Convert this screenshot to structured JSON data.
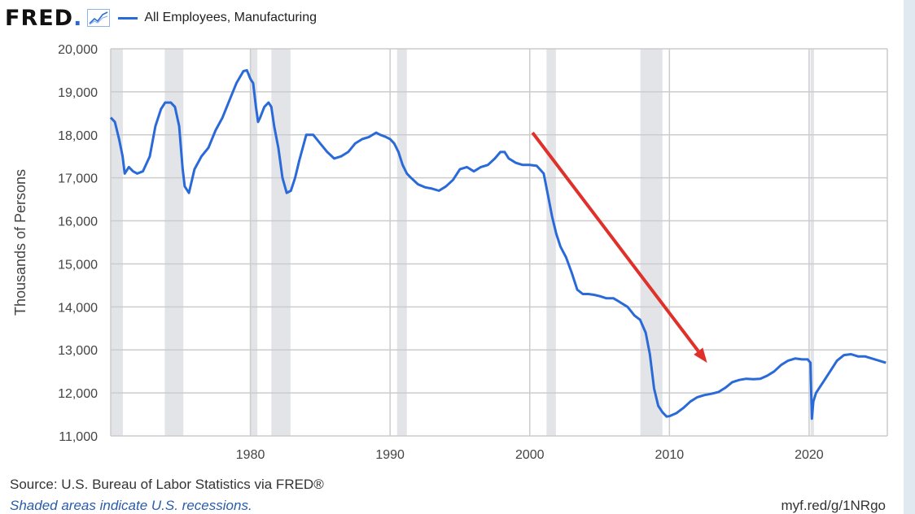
{
  "header": {
    "logo_text": "FRED",
    "logo_dot": ".",
    "icon": "graph-icon"
  },
  "footer": {
    "source": "Source: U.S. Bureau of Labor Statistics via FRED®",
    "recession_note": "Shaded areas indicate U.S. recessions.",
    "short_url": "myf.red/g/1NRgo"
  },
  "colors": {
    "series": "#2a6ad8",
    "arrow": "#e0302a",
    "recession": "#e2e4e8",
    "grid": "#cccccc",
    "side_panel": "#e1e9f0"
  },
  "chart_data": {
    "type": "line",
    "title": "",
    "xlabel": "",
    "ylabel": "Thousands of Persons",
    "xlim": [
      1970,
      2025.6
    ],
    "ylim": [
      11000,
      20000
    ],
    "x_ticks": [
      1980,
      1990,
      2000,
      2010,
      2020
    ],
    "y_ticks": [
      11000,
      12000,
      13000,
      14000,
      15000,
      16000,
      17000,
      18000,
      19000,
      20000
    ],
    "y_tick_labels": [
      "11,000",
      "12,000",
      "13,000",
      "14,000",
      "15,000",
      "16,000",
      "17,000",
      "18,000",
      "19,000",
      "20,000"
    ],
    "grid": true,
    "legend": "top-left",
    "recessions": [
      [
        1969.92,
        1970.87
      ],
      [
        1973.87,
        1975.2
      ],
      [
        1980.0,
        1980.5
      ],
      [
        1981.5,
        1982.87
      ],
      [
        1990.5,
        1991.2
      ],
      [
        2001.2,
        2001.87
      ],
      [
        2007.92,
        2009.5
      ],
      [
        2020.1,
        2020.35
      ]
    ],
    "annotations": [
      {
        "type": "arrow",
        "from": [
          2000.2,
          18050
        ],
        "to": [
          2012.7,
          12700
        ]
      }
    ],
    "series": [
      {
        "name": "All Employees, Manufacturing",
        "x": [
          1970.0,
          1970.3,
          1970.6,
          1970.85,
          1971.0,
          1971.3,
          1971.6,
          1971.9,
          1972.3,
          1972.8,
          1973.2,
          1973.6,
          1973.9,
          1974.3,
          1974.6,
          1974.9,
          1975.15,
          1975.3,
          1975.6,
          1976.0,
          1976.5,
          1977.0,
          1977.5,
          1978.0,
          1978.5,
          1979.0,
          1979.5,
          1979.75,
          1980.0,
          1980.2,
          1980.4,
          1980.55,
          1980.7,
          1981.0,
          1981.3,
          1981.5,
          1981.7,
          1982.0,
          1982.3,
          1982.6,
          1982.9,
          1983.2,
          1983.5,
          1984.0,
          1984.5,
          1985.0,
          1985.5,
          1986.0,
          1986.5,
          1987.0,
          1987.5,
          1988.0,
          1988.5,
          1989.0,
          1989.3,
          1989.7,
          1990.0,
          1990.3,
          1990.6,
          1990.9,
          1991.2,
          1991.5,
          1992.0,
          1992.5,
          1993.0,
          1993.5,
          1994.0,
          1994.5,
          1995.0,
          1995.5,
          1996.0,
          1996.5,
          1997.0,
          1997.5,
          1997.9,
          1998.2,
          1998.5,
          1999.0,
          1999.5,
          2000.0,
          2000.5,
          2001.0,
          2001.3,
          2001.6,
          2001.9,
          2002.2,
          2002.6,
          2003.0,
          2003.4,
          2003.8,
          2004.2,
          2004.6,
          2005.0,
          2005.5,
          2006.0,
          2006.5,
          2007.0,
          2007.5,
          2007.9,
          2008.3,
          2008.6,
          2008.9,
          2009.2,
          2009.5,
          2009.8,
          2010.0,
          2010.5,
          2011.0,
          2011.5,
          2012.0,
          2012.5,
          2013.0,
          2013.5,
          2014.0,
          2014.5,
          2015.0,
          2015.5,
          2016.0,
          2016.5,
          2017.0,
          2017.5,
          2018.0,
          2018.5,
          2019.0,
          2019.5,
          2019.9,
          2020.1,
          2020.2,
          2020.3,
          2020.5,
          2020.8,
          2021.0,
          2021.5,
          2022.0,
          2022.5,
          2023.0,
          2023.5,
          2024.0,
          2024.5,
          2025.0,
          2025.5
        ],
        "values": [
          18400,
          18300,
          17900,
          17500,
          17100,
          17250,
          17150,
          17100,
          17150,
          17500,
          18200,
          18600,
          18750,
          18750,
          18650,
          18200,
          17200,
          16800,
          16650,
          17200,
          17500,
          17700,
          18100,
          18400,
          18800,
          19200,
          19480,
          19500,
          19300,
          19200,
          18650,
          18300,
          18400,
          18650,
          18750,
          18650,
          18200,
          17700,
          17000,
          16650,
          16700,
          17000,
          17400,
          18000,
          18000,
          17800,
          17600,
          17450,
          17500,
          17600,
          17800,
          17900,
          17950,
          18050,
          18000,
          17950,
          17900,
          17800,
          17600,
          17300,
          17100,
          17000,
          16850,
          16780,
          16750,
          16700,
          16800,
          16950,
          17200,
          17250,
          17150,
          17250,
          17300,
          17450,
          17600,
          17600,
          17450,
          17350,
          17300,
          17300,
          17280,
          17100,
          16600,
          16100,
          15700,
          15400,
          15150,
          14800,
          14400,
          14300,
          14300,
          14280,
          14250,
          14200,
          14200,
          14100,
          14000,
          13800,
          13700,
          13400,
          12900,
          12100,
          11700,
          11550,
          11450,
          11460,
          11530,
          11650,
          11800,
          11900,
          11950,
          11980,
          12020,
          12120,
          12250,
          12300,
          12330,
          12320,
          12330,
          12400,
          12500,
          12650,
          12750,
          12800,
          12780,
          12780,
          12700,
          11400,
          11800,
          12000,
          12150,
          12250,
          12500,
          12750,
          12880,
          12900,
          12850,
          12850,
          12800,
          12750,
          12700
        ]
      }
    ]
  }
}
